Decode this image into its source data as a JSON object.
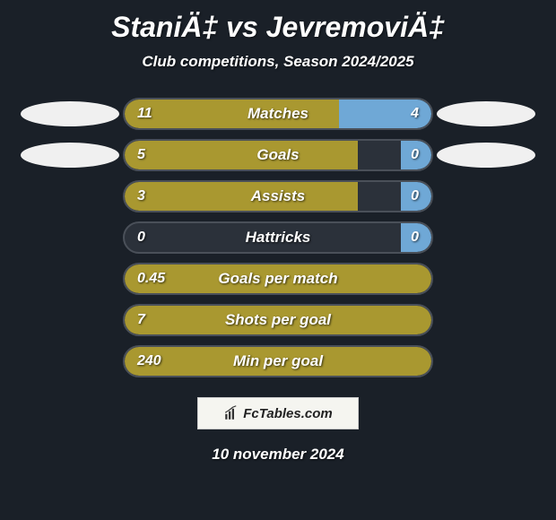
{
  "title": "StaniÄ‡ vs JevremoviÄ‡",
  "subtitle": "Club competitions, Season 2024/2025",
  "colors": {
    "background": "#1a2028",
    "bar_bg": "#2b313a",
    "bar_border": "#4a5059",
    "left_fill": "#a99830",
    "right_fill": "#6fa8d6",
    "ellipse": "#f0f0f0",
    "text": "#ffffff"
  },
  "rows": [
    {
      "label": "Matches",
      "left": "11",
      "right": "4",
      "left_pct": 70,
      "right_pct": 30,
      "show_ellipses": true
    },
    {
      "label": "Goals",
      "left": "5",
      "right": "0",
      "left_pct": 76,
      "right_pct": 10,
      "show_ellipses": true
    },
    {
      "label": "Assists",
      "left": "3",
      "right": "0",
      "left_pct": 76,
      "right_pct": 10,
      "show_ellipses": false
    },
    {
      "label": "Hattricks",
      "left": "0",
      "right": "0",
      "left_pct": 0,
      "right_pct": 10,
      "show_ellipses": false
    },
    {
      "label": "Goals per match",
      "left": "0.45",
      "right": "",
      "left_pct": 100,
      "right_pct": 0,
      "show_ellipses": false
    },
    {
      "label": "Shots per goal",
      "left": "7",
      "right": "",
      "left_pct": 100,
      "right_pct": 0,
      "show_ellipses": false
    },
    {
      "label": "Min per goal",
      "left": "240",
      "right": "",
      "left_pct": 100,
      "right_pct": 0,
      "show_ellipses": false
    }
  ],
  "branding": "FcTables.com",
  "date": "10 november 2024"
}
